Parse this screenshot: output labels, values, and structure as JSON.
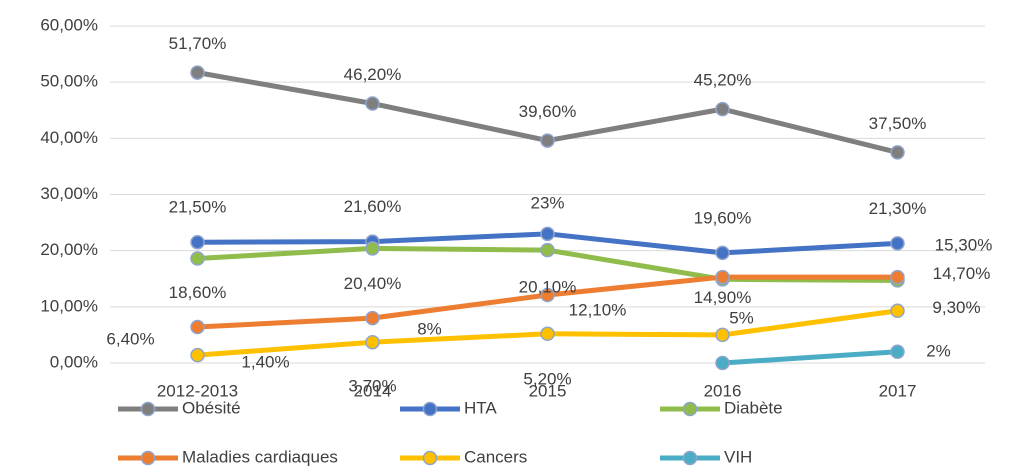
{
  "chart_data": {
    "type": "line",
    "categories": [
      "2012-2013",
      "2014",
      "2015",
      "2016",
      "2017"
    ],
    "ylim": [
      0,
      60
    ],
    "yticks": [
      {
        "value": 0,
        "label": "0,00%"
      },
      {
        "value": 10,
        "label": "10,00%"
      },
      {
        "value": 20,
        "label": "20,00%"
      },
      {
        "value": 30,
        "label": "30,00%"
      },
      {
        "value": 40,
        "label": "40,00%"
      },
      {
        "value": 50,
        "label": "50,00%"
      },
      {
        "value": 60,
        "label": "60,00%"
      }
    ],
    "grid": true,
    "legend": "bottom",
    "series": [
      {
        "name": "Obésité",
        "color": "#7f7f7f",
        "values": [
          51.7,
          46.2,
          39.6,
          45.2,
          37.5
        ],
        "value_labels": [
          "51,70%",
          "46,20%",
          "39,60%",
          "45,20%",
          "37,50%"
        ]
      },
      {
        "name": "HTA",
        "color": "#4472c4",
        "values": [
          21.5,
          21.6,
          23,
          19.6,
          21.3
        ],
        "value_labels": [
          "21,50%",
          "21,60%",
          "23%",
          "19,60%",
          "21,30%"
        ]
      },
      {
        "name": "Diabète",
        "color": "#8fbc4a",
        "values": [
          18.6,
          20.4,
          20.1,
          14.9,
          14.7
        ],
        "value_labels": [
          "18,60%",
          "20,40%",
          "20,10%",
          "14,90%",
          "14,70%"
        ]
      },
      {
        "name": "Maladies cardiaques",
        "color": "#ed7d31",
        "values": [
          6.4,
          8,
          12.1,
          15.3,
          15.3
        ],
        "value_labels": [
          "6,40%",
          "8%",
          "12,10%",
          null,
          "15,30%"
        ]
      },
      {
        "name": "Cancers",
        "color": "#ffc000",
        "values": [
          1.4,
          3.7,
          5.2,
          5,
          9.3
        ],
        "value_labels": [
          "1,40%",
          "3,70%",
          "5,20%",
          "5%",
          "9,30%"
        ]
      },
      {
        "name": "VIH",
        "color": "#4bacc6",
        "values": [
          null,
          null,
          null,
          0,
          2
        ],
        "value_labels": [
          null,
          null,
          null,
          null,
          "2%"
        ]
      }
    ]
  }
}
